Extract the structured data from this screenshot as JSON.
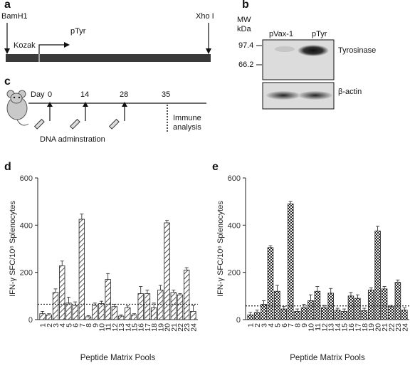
{
  "panel_a": {
    "letter": "a",
    "site_left": "BamH1",
    "site_right": "Xho I",
    "kozak": "Kozak",
    "insert": "pTyr"
  },
  "panel_b": {
    "letter": "b",
    "mw_label": "MW",
    "kda_label": "kDa",
    "lane1": "pVax-1",
    "lane2": "pTyr",
    "mw_top": "97.4",
    "mw_bottom": "66.2",
    "band_label": "Tyrosinase",
    "loading_label": "β-actin"
  },
  "panel_c": {
    "letter": "c",
    "day_label": "Day",
    "days": [
      "0",
      "14",
      "28",
      "35"
    ],
    "immune_line1": "Immune",
    "immune_line2": "analysis",
    "dna_label": "DNA adminstration"
  },
  "chart_data": [
    {
      "type": "bar",
      "panel": "d",
      "ylabel": "IFN-γ SFC/10⁶ Splenocytes",
      "xlabel": "Peptide Matrix Pools",
      "ylim": [
        0,
        600
      ],
      "yticks": [
        0,
        200,
        400,
        600
      ],
      "threshold": 65,
      "pattern": "hatch",
      "categories": [
        "1",
        "2",
        "3",
        "4",
        "5",
        "6",
        "7",
        "8",
        "9",
        "10",
        "11",
        "12",
        "13",
        "14",
        "15",
        "16",
        "17",
        "18",
        "19",
        "20",
        "21",
        "22",
        "23",
        "24"
      ],
      "values": [
        25,
        20,
        115,
        228,
        70,
        60,
        425,
        12,
        60,
        68,
        170,
        55,
        15,
        50,
        20,
        110,
        110,
        50,
        125,
        410,
        115,
        105,
        210,
        35
      ],
      "errors": [
        10,
        5,
        15,
        20,
        25,
        15,
        22,
        5,
        10,
        10,
        25,
        10,
        5,
        8,
        5,
        30,
        15,
        20,
        20,
        10,
        10,
        5,
        10,
        25
      ]
    },
    {
      "type": "bar",
      "panel": "e",
      "ylabel": "IFN-γ SFC/10⁶ Splenocytes",
      "xlabel": "Peptide Matrix Pools",
      "ylim": [
        0,
        600
      ],
      "yticks": [
        0,
        200,
        400,
        600
      ],
      "threshold": 58,
      "pattern": "checker",
      "categories": [
        "1",
        "2",
        "3",
        "4",
        "5",
        "6",
        "7",
        "8",
        "9",
        "10",
        "11",
        "12",
        "13",
        "14",
        "15",
        "16",
        "17",
        "18",
        "19",
        "20",
        "21",
        "22",
        "23",
        "24"
      ],
      "values": [
        20,
        30,
        65,
        305,
        120,
        45,
        490,
        35,
        50,
        80,
        120,
        50,
        112,
        40,
        35,
        100,
        90,
        38,
        125,
        375,
        130,
        55,
        158,
        40
      ],
      "errors": [
        10,
        10,
        15,
        8,
        25,
        10,
        10,
        10,
        15,
        25,
        20,
        10,
        20,
        8,
        10,
        15,
        15,
        10,
        10,
        20,
        10,
        5,
        10,
        10
      ]
    }
  ]
}
